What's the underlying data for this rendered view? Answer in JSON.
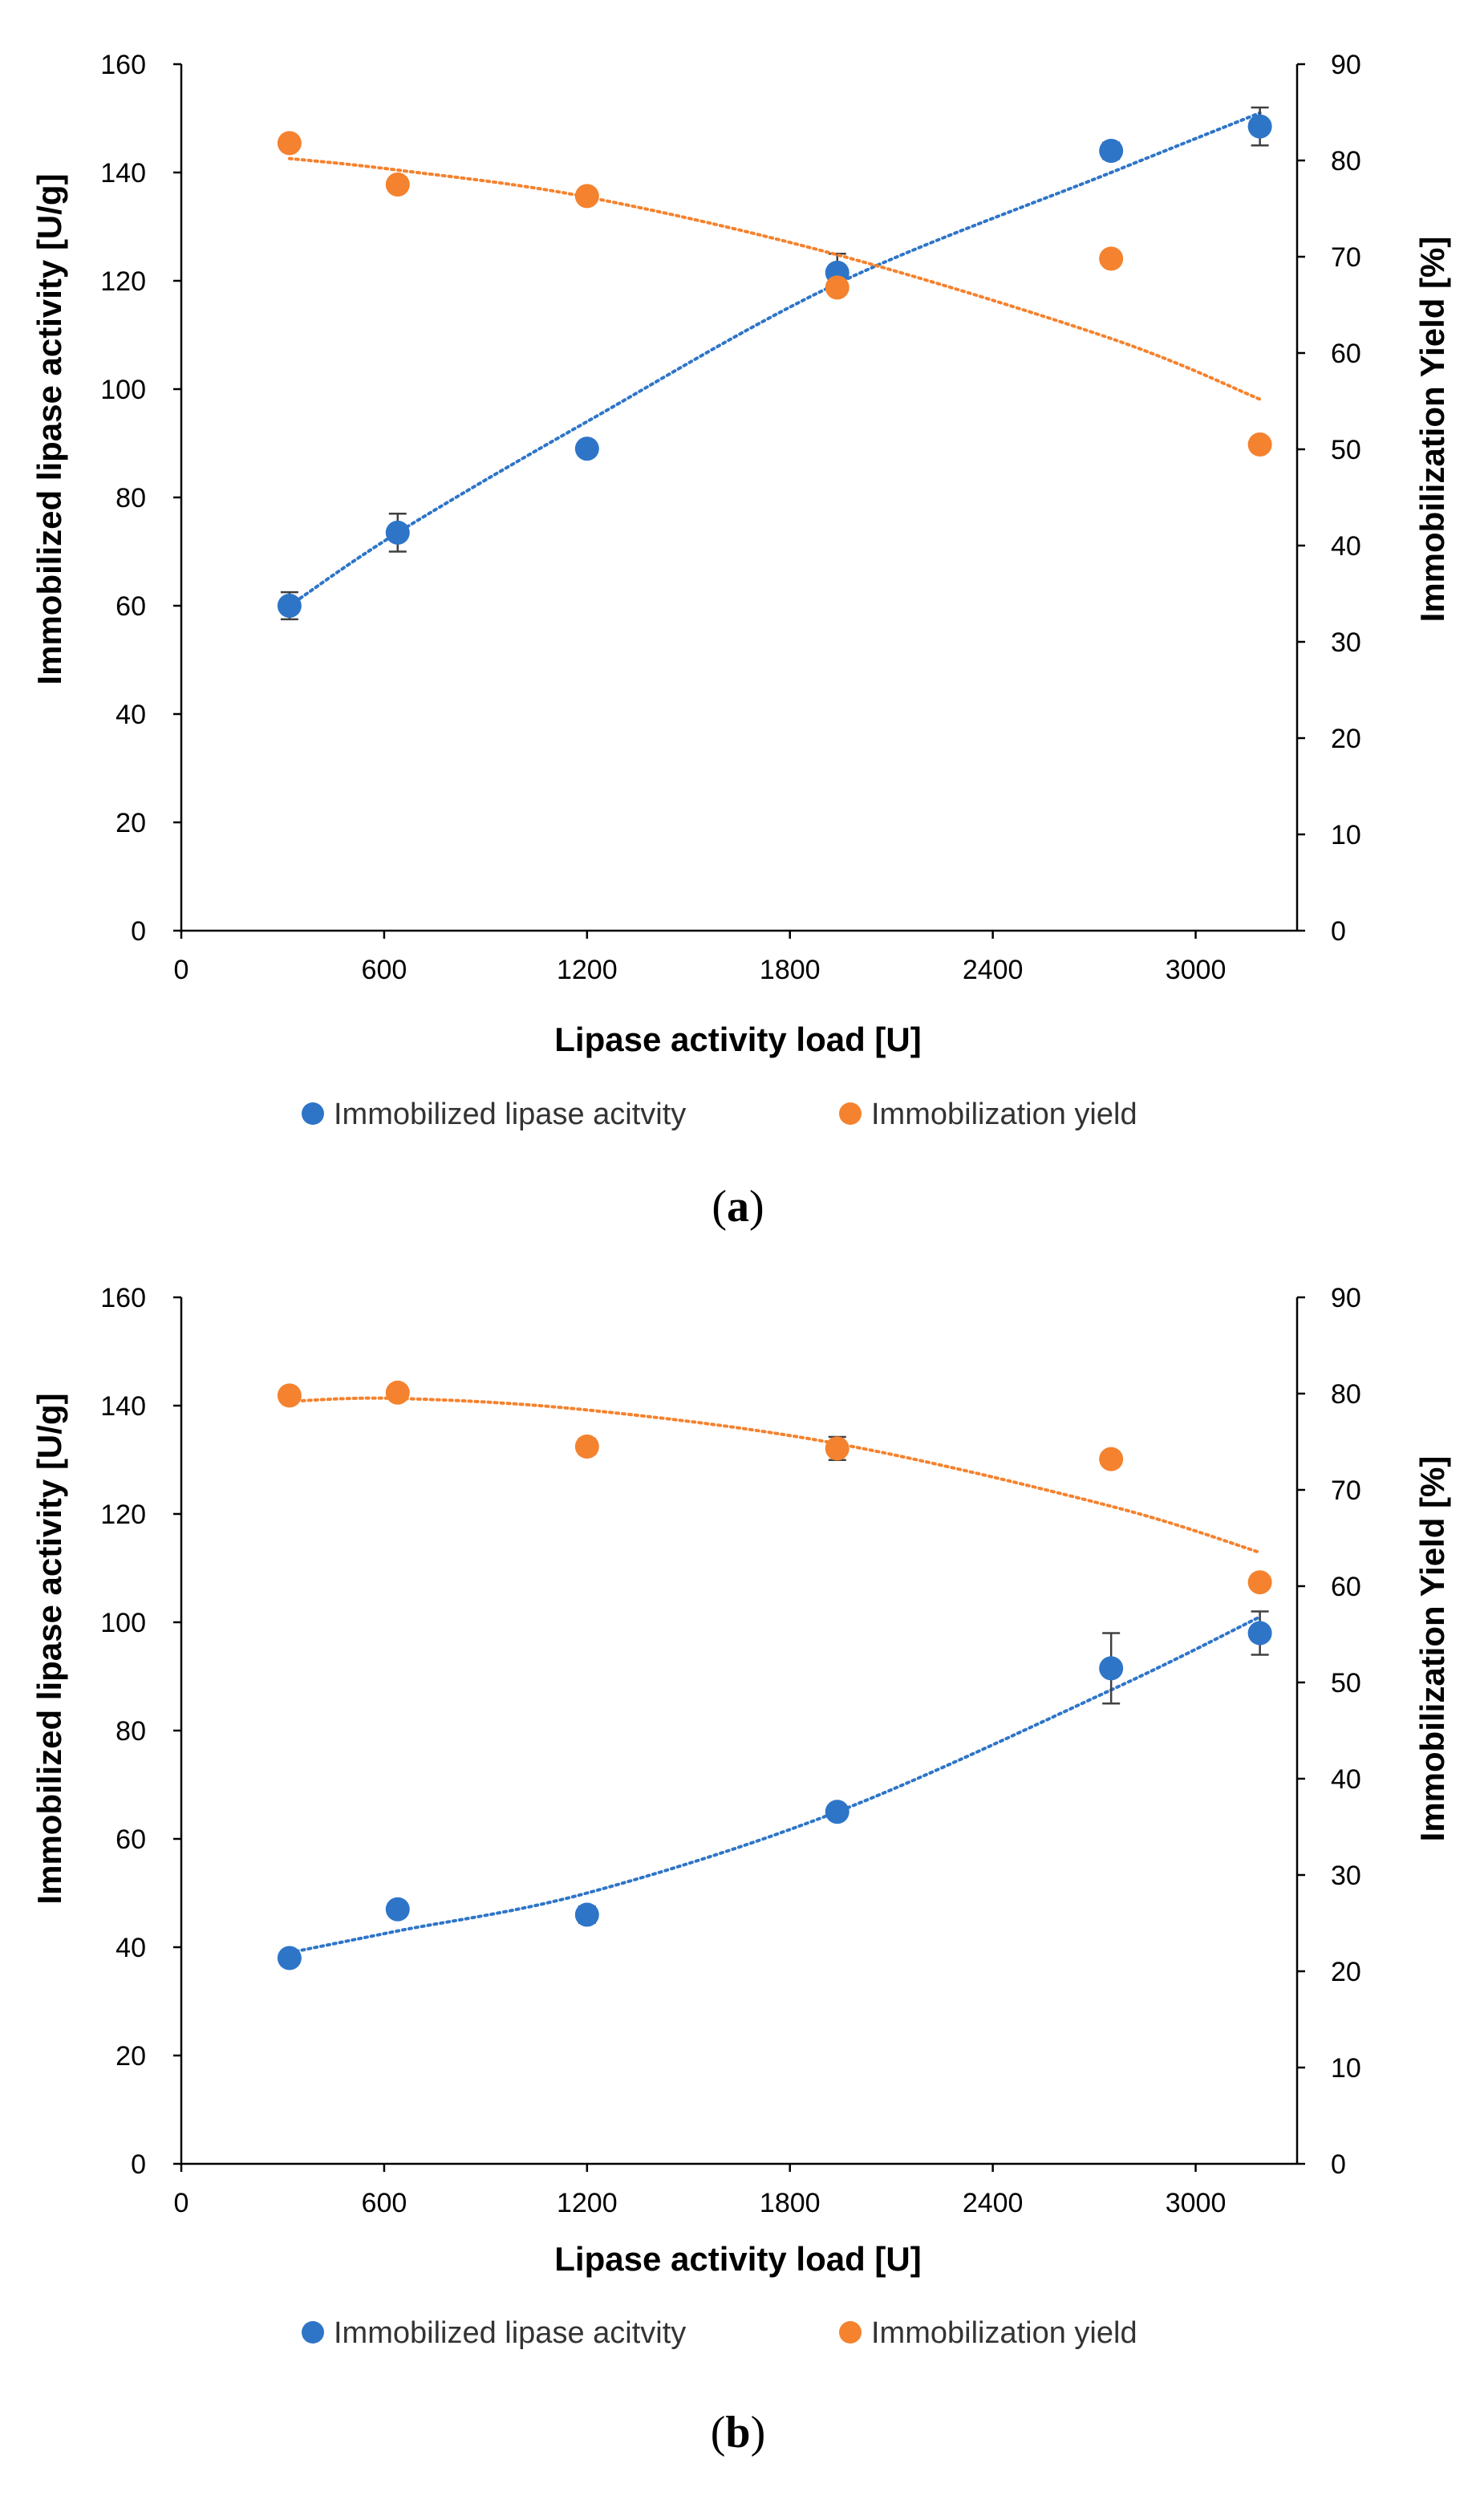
{
  "colors": {
    "activity": "#2E75C8",
    "yield": "#F5822E",
    "axis": "#000000",
    "errorbar": "#404040"
  },
  "chart_data": [
    {
      "type": "scatter",
      "panel_label": "a",
      "xlabel": "Lipase activity load [U]",
      "ylabel_left": "Immobilized lipase activity [U/g]",
      "ylabel_right": "Immobilization Yield [%]",
      "xlim": [
        0,
        3300
      ],
      "xticks": [
        0,
        600,
        1200,
        1800,
        2400,
        3000
      ],
      "ylim_left": [
        0,
        160
      ],
      "yticks_left": [
        0,
        20,
        40,
        60,
        80,
        100,
        120,
        140,
        160
      ],
      "ylim_right": [
        0,
        90
      ],
      "yticks_right": [
        0,
        10,
        20,
        30,
        40,
        50,
        60,
        70,
        80,
        90
      ],
      "legend": [
        "Immobilized lipase acitvity",
        "Immobilization yield"
      ],
      "series": [
        {
          "name": "Immobilized lipase acitvity",
          "axis": "left",
          "x": [
            320,
            640,
            1200,
            1940,
            2750,
            3190
          ],
          "y": [
            60,
            73.5,
            89,
            121.5,
            144,
            148.5
          ],
          "err": [
            2.5,
            3.5,
            1,
            3.5,
            1.5,
            3.5
          ],
          "trend": [
            60,
            73.5,
            94,
            119.5,
            140,
            151
          ]
        },
        {
          "name": "Immobilization yield",
          "axis": "right",
          "x": [
            320,
            640,
            1200,
            1940,
            2750,
            3190
          ],
          "y": [
            81.8,
            77.5,
            76.3,
            66.8,
            69.8,
            50.5
          ],
          "err": [
            0,
            0,
            0,
            0,
            0,
            0
          ],
          "trend": [
            80.2,
            79,
            76.2,
            70.2,
            61.5,
            55.2
          ]
        }
      ]
    },
    {
      "type": "scatter",
      "panel_label": "b",
      "xlabel": "Lipase activity load [U]",
      "ylabel_left": "Immobilized lipase activity [U/g]",
      "ylabel_right": "Immobilization Yield [%]",
      "xlim": [
        0,
        3300
      ],
      "xticks": [
        0,
        600,
        1200,
        1800,
        2400,
        3000
      ],
      "ylim_left": [
        0,
        160
      ],
      "yticks_left": [
        0,
        20,
        40,
        60,
        80,
        100,
        120,
        140,
        160
      ],
      "ylim_right": [
        0,
        90
      ],
      "yticks_right": [
        0,
        10,
        20,
        30,
        40,
        50,
        60,
        70,
        80,
        90
      ],
      "legend": [
        "Immobilized lipase acitvity",
        "Immobilization yield"
      ],
      "series": [
        {
          "name": "Immobilized lipase acitvity",
          "axis": "left",
          "x": [
            320,
            640,
            1200,
            1940,
            2750,
            3190
          ],
          "y": [
            38,
            47,
            46,
            65,
            91.5,
            98
          ],
          "err": [
            1,
            1,
            1.5,
            1,
            6.5,
            4
          ],
          "trend": [
            39,
            43,
            50,
            65,
            87.5,
            101
          ]
        },
        {
          "name": "Immobilization yield",
          "axis": "right",
          "x": [
            320,
            640,
            1200,
            1940,
            2750,
            3190
          ],
          "y": [
            79.8,
            80.1,
            74.5,
            74.3,
            73.2,
            60.4
          ],
          "err": [
            0,
            0,
            0.8,
            1.2,
            0,
            0
          ],
          "trend": [
            79.2,
            79.5,
            78.3,
            74.8,
            68.3,
            63.5
          ]
        }
      ]
    }
  ]
}
